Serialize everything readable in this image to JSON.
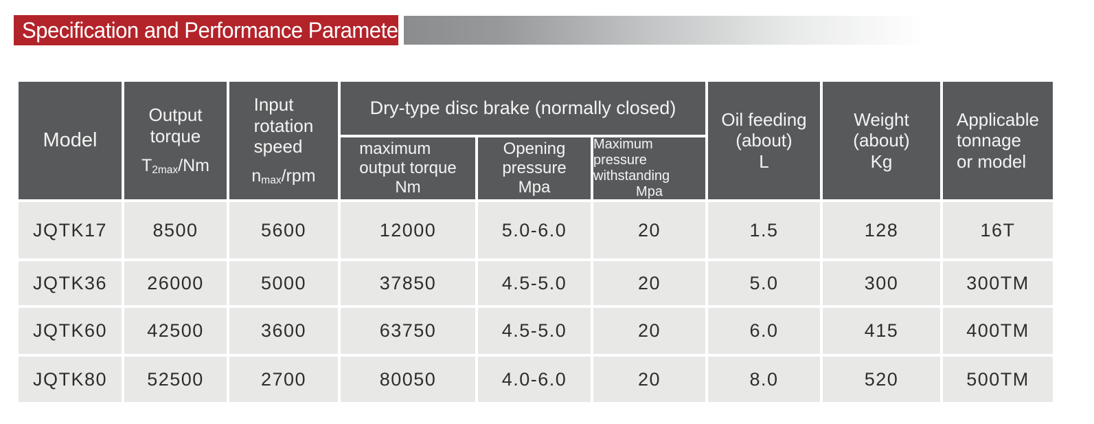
{
  "banner": {
    "title": "Specification and Performance Parameters"
  },
  "colors": {
    "accent": "#b3242a",
    "header_bg": "#58595b",
    "row_bg": "#e8e8e7",
    "header_text": "#f4f4f4",
    "body_text": "#2d2d2d"
  },
  "table": {
    "header": {
      "model": "Model",
      "output_torque": {
        "label": "Output\ntorque",
        "sym_base": "T",
        "sym_sub": "2max",
        "sym_unit": "/Nm"
      },
      "input_speed": {
        "label": "Input\nrotation\nspeed",
        "sym_base": "n",
        "sym_sub": "max",
        "sym_unit": "/rpm"
      },
      "dry_type_group": "Dry-type disc brake (normally closed)",
      "sub_max_output": {
        "lines": "maximum\noutput torque",
        "unit": "Nm"
      },
      "sub_opening": {
        "lines": "Opening\npressure",
        "unit": "Mpa"
      },
      "sub_max_withstanding": {
        "lines": "Maximum pressure\nwithstanding",
        "unit": "Mpa"
      },
      "oil_feeding": "Oil feeding\n(about)\nL",
      "weight": "Weight\n(about)\nKg",
      "applicable": "Applicable\ntonnage\nor model"
    },
    "rows": [
      {
        "model": "JQTK17",
        "output_torque": "8500",
        "input_speed": "5600",
        "max_output_torque": "12000",
        "opening_pressure": "5.0-6.0",
        "max_pressure": "20",
        "oil_feeding": "1.5",
        "weight": "128",
        "applicable": "16T"
      },
      {
        "model": "JQTK36",
        "output_torque": "26000",
        "input_speed": "5000",
        "max_output_torque": "37850",
        "opening_pressure": "4.5-5.0",
        "max_pressure": "20",
        "oil_feeding": "5.0",
        "weight": "300",
        "applicable": "300TM"
      },
      {
        "model": "JQTK60",
        "output_torque": "42500",
        "input_speed": "3600",
        "max_output_torque": "63750",
        "opening_pressure": "4.5-5.0",
        "max_pressure": "20",
        "oil_feeding": "6.0",
        "weight": "415",
        "applicable": "400TM"
      },
      {
        "model": "JQTK80",
        "output_torque": "52500",
        "input_speed": "2700",
        "max_output_torque": "80050",
        "opening_pressure": "4.0-6.0",
        "max_pressure": "20",
        "oil_feeding": "8.0",
        "weight": "520",
        "applicable": "500TM"
      }
    ]
  }
}
